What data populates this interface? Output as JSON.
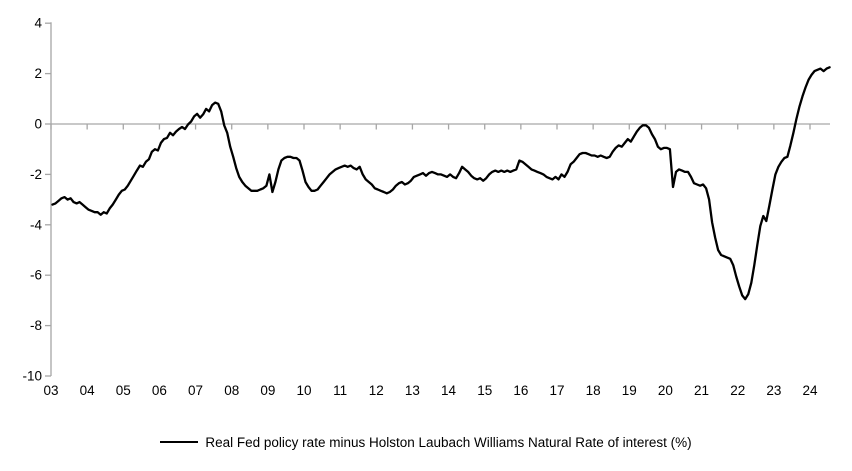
{
  "chart_data": {
    "type": "line",
    "title": "",
    "legend": "Real Fed policy rate minus Holston Laubach Williams Natural Rate of interest (%)",
    "legend_position": "bottom-center",
    "grid": "zero-line-only",
    "line_color": "#000000",
    "axis_color": "#A6A6A6",
    "ylim": [
      -10,
      4
    ],
    "y_ticks": [
      4,
      2,
      0,
      -2,
      -4,
      -6,
      -8,
      -10
    ],
    "y_tick_labels": [
      "4",
      "2",
      "0",
      "-2",
      "-4",
      "-6",
      "-8",
      "-10"
    ],
    "x_tick_labels": [
      "03",
      "04",
      "05",
      "06",
      "07",
      "08",
      "09",
      "10",
      "11",
      "12",
      "13",
      "14",
      "15",
      "16",
      "17",
      "18",
      "19",
      "20",
      "21",
      "22",
      "23",
      "24"
    ],
    "x_start_year": 2003,
    "x_end_label": "mid-2024",
    "series": [
      {
        "name": "Real Fed policy rate minus Holston Laubach Williams Natural Rate of interest (%)",
        "frequency": "monthly",
        "values_by_year": {
          "2003": [
            -3.2,
            -3.15,
            -3.05,
            -2.95,
            -2.9,
            -3.0,
            -2.95,
            -3.1,
            -3.15,
            -3.1,
            -3.2,
            -3.3
          ],
          "2004": [
            -3.4,
            -3.45,
            -3.5,
            -3.5,
            -3.6,
            -3.5,
            -3.55,
            -3.35,
            -3.2,
            -3.0,
            -2.8,
            -2.65
          ],
          "2005": [
            -2.6,
            -2.45,
            -2.25,
            -2.05,
            -1.85,
            -1.65,
            -1.7,
            -1.5,
            -1.4,
            -1.1,
            -1.0,
            -1.05
          ],
          "2006": [
            -0.75,
            -0.6,
            -0.55,
            -0.35,
            -0.45,
            -0.3,
            -0.2,
            -0.12,
            -0.2,
            -0.02,
            0.1,
            0.3
          ],
          "2007": [
            0.4,
            0.25,
            0.38,
            0.6,
            0.5,
            0.75,
            0.85,
            0.8,
            0.5,
            -0.05,
            -0.35,
            -0.9
          ],
          "2008": [
            -1.3,
            -1.75,
            -2.1,
            -2.3,
            -2.45,
            -2.55,
            -2.65,
            -2.65,
            -2.65,
            -2.6,
            -2.55,
            -2.45
          ],
          "2009": [
            -2.0,
            -2.7,
            -2.3,
            -1.8,
            -1.45,
            -1.35,
            -1.3,
            -1.3,
            -1.35,
            -1.35,
            -1.45,
            -1.85
          ],
          "2010": [
            -2.3,
            -2.5,
            -2.65,
            -2.65,
            -2.6,
            -2.45,
            -2.3,
            -2.15,
            -2.0,
            -1.9,
            -1.8,
            -1.75
          ],
          "2011": [
            -1.7,
            -1.65,
            -1.7,
            -1.65,
            -1.75,
            -1.8,
            -1.7,
            -2.0,
            -2.2,
            -2.3,
            -2.4,
            -2.55
          ],
          "2012": [
            -2.6,
            -2.65,
            -2.7,
            -2.75,
            -2.7,
            -2.6,
            -2.45,
            -2.35,
            -2.3,
            -2.4,
            -2.35,
            -2.25
          ],
          "2013": [
            -2.1,
            -2.05,
            -2.0,
            -1.95,
            -2.05,
            -1.95,
            -1.9,
            -1.95,
            -2.0,
            -2.0,
            -2.05,
            -2.1
          ],
          "2014": [
            -2.0,
            -2.1,
            -2.15,
            -1.95,
            -1.7,
            -1.8,
            -1.9,
            -2.05,
            -2.15,
            -2.2,
            -2.15,
            -2.25
          ],
          "2015": [
            -2.15,
            -2.0,
            -1.9,
            -1.85,
            -1.9,
            -1.85,
            -1.9,
            -1.85,
            -1.9,
            -1.85,
            -1.8,
            -1.45
          ],
          "2016": [
            -1.5,
            -1.6,
            -1.7,
            -1.8,
            -1.85,
            -1.9,
            -1.95,
            -2.0,
            -2.1,
            -2.15,
            -2.2,
            -2.1
          ],
          "2017": [
            -2.2,
            -2.0,
            -2.1,
            -1.9,
            -1.6,
            -1.5,
            -1.35,
            -1.2,
            -1.15,
            -1.15,
            -1.2,
            -1.25
          ],
          "2018": [
            -1.25,
            -1.3,
            -1.25,
            -1.3,
            -1.35,
            -1.3,
            -1.1,
            -0.95,
            -0.85,
            -0.9,
            -0.75,
            -0.6
          ],
          "2019": [
            -0.7,
            -0.5,
            -0.3,
            -0.15,
            -0.05,
            -0.05,
            -0.15,
            -0.4,
            -0.6,
            -0.9,
            -1.0,
            -0.95
          ],
          "2020": [
            -0.95,
            -1.0,
            -2.5,
            -1.9,
            -1.8,
            -1.85,
            -1.9,
            -1.9,
            -2.1,
            -2.35,
            -2.4,
            -2.45
          ],
          "2021": [
            -2.4,
            -2.55,
            -3.0,
            -3.9,
            -4.5,
            -5.0,
            -5.2,
            -5.25,
            -5.3,
            -5.35,
            -5.6,
            -6.05
          ],
          "2022": [
            -6.45,
            -6.8,
            -6.95,
            -6.75,
            -6.3,
            -5.6,
            -4.8,
            -4.05,
            -3.65,
            -3.85,
            -3.25,
            -2.6
          ],
          "2023": [
            -2.0,
            -1.7,
            -1.5,
            -1.35,
            -1.3,
            -0.85,
            -0.35,
            0.2,
            0.7,
            1.1,
            1.45,
            1.75
          ],
          "2024": [
            1.95,
            2.1,
            2.15,
            2.2,
            2.1,
            2.2,
            2.25
          ]
        }
      }
    ]
  }
}
